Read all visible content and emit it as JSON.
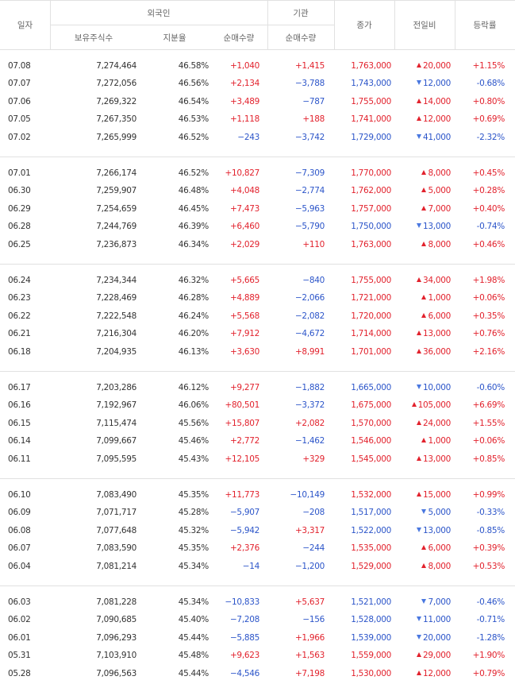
{
  "header": {
    "date": "일자",
    "foreign": "외국인",
    "institution": "기관",
    "foreign_holdings": "보유주식수",
    "foreign_ratio": "지분율",
    "foreign_net": "순매수량",
    "institution_net": "순매수량",
    "close": "종가",
    "change": "전일비",
    "rate": "등락률"
  },
  "groups": [
    [
      [
        "07.08",
        "7,274,464",
        "46.58%",
        "+1,040",
        "+1,415",
        "1,763,000",
        "20,000",
        "+1.15%"
      ],
      [
        "07.07",
        "7,272,056",
        "46.56%",
        "+2,134",
        "−3,788",
        "1,743,000",
        "12,000",
        "-0.68%"
      ],
      [
        "07.06",
        "7,269,322",
        "46.54%",
        "+3,489",
        "−787",
        "1,755,000",
        "14,000",
        "+0.80%"
      ],
      [
        "07.05",
        "7,267,350",
        "46.53%",
        "+1,118",
        "+188",
        "1,741,000",
        "12,000",
        "+0.69%"
      ],
      [
        "07.02",
        "7,265,999",
        "46.52%",
        "−243",
        "−3,742",
        "1,729,000",
        "41,000",
        "-2.32%"
      ]
    ],
    [
      [
        "07.01",
        "7,266,174",
        "46.52%",
        "+10,827",
        "−7,309",
        "1,770,000",
        "8,000",
        "+0.45%"
      ],
      [
        "06.30",
        "7,259,907",
        "46.48%",
        "+4,048",
        "−2,774",
        "1,762,000",
        "5,000",
        "+0.28%"
      ],
      [
        "06.29",
        "7,254,659",
        "46.45%",
        "+7,473",
        "−5,963",
        "1,757,000",
        "7,000",
        "+0.40%"
      ],
      [
        "06.28",
        "7,244,769",
        "46.39%",
        "+6,460",
        "−5,790",
        "1,750,000",
        "13,000",
        "-0.74%"
      ],
      [
        "06.25",
        "7,236,873",
        "46.34%",
        "+2,029",
        "+110",
        "1,763,000",
        "8,000",
        "+0.46%"
      ]
    ],
    [
      [
        "06.24",
        "7,234,344",
        "46.32%",
        "+5,665",
        "−840",
        "1,755,000",
        "34,000",
        "+1.98%"
      ],
      [
        "06.23",
        "7,228,469",
        "46.28%",
        "+4,889",
        "−2,066",
        "1,721,000",
        "1,000",
        "+0.06%"
      ],
      [
        "06.22",
        "7,222,548",
        "46.24%",
        "+5,568",
        "−2,082",
        "1,720,000",
        "6,000",
        "+0.35%"
      ],
      [
        "06.21",
        "7,216,304",
        "46.20%",
        "+7,912",
        "−4,672",
        "1,714,000",
        "13,000",
        "+0.76%"
      ],
      [
        "06.18",
        "7,204,935",
        "46.13%",
        "+3,630",
        "+8,991",
        "1,701,000",
        "36,000",
        "+2.16%"
      ]
    ],
    [
      [
        "06.17",
        "7,203,286",
        "46.12%",
        "+9,277",
        "−1,882",
        "1,665,000",
        "10,000",
        "-0.60%"
      ],
      [
        "06.16",
        "7,192,967",
        "46.06%",
        "+80,501",
        "−3,372",
        "1,675,000",
        "105,000",
        "+6.69%"
      ],
      [
        "06.15",
        "7,115,474",
        "45.56%",
        "+15,807",
        "+2,082",
        "1,570,000",
        "24,000",
        "+1.55%"
      ],
      [
        "06.14",
        "7,099,667",
        "45.46%",
        "+2,772",
        "−1,462",
        "1,546,000",
        "1,000",
        "+0.06%"
      ],
      [
        "06.11",
        "7,095,595",
        "45.43%",
        "+12,105",
        "+329",
        "1,545,000",
        "13,000",
        "+0.85%"
      ]
    ],
    [
      [
        "06.10",
        "7,083,490",
        "45.35%",
        "+11,773",
        "−10,149",
        "1,532,000",
        "15,000",
        "+0.99%"
      ],
      [
        "06.09",
        "7,071,717",
        "45.28%",
        "−5,907",
        "−208",
        "1,517,000",
        "5,000",
        "-0.33%"
      ],
      [
        "06.08",
        "7,077,648",
        "45.32%",
        "−5,942",
        "+3,317",
        "1,522,000",
        "13,000",
        "-0.85%"
      ],
      [
        "06.07",
        "7,083,590",
        "45.35%",
        "+2,376",
        "−244",
        "1,535,000",
        "6,000",
        "+0.39%"
      ],
      [
        "06.04",
        "7,081,214",
        "45.34%",
        "−14",
        "−1,200",
        "1,529,000",
        "8,000",
        "+0.53%"
      ]
    ],
    [
      [
        "06.03",
        "7,081,228",
        "45.34%",
        "−10,833",
        "+5,637",
        "1,521,000",
        "7,000",
        "-0.46%"
      ],
      [
        "06.02",
        "7,090,685",
        "45.40%",
        "−7,208",
        "−156",
        "1,528,000",
        "11,000",
        "-0.71%"
      ],
      [
        "06.01",
        "7,096,293",
        "45.44%",
        "−5,885",
        "+1,966",
        "1,539,000",
        "20,000",
        "-1.28%"
      ],
      [
        "05.31",
        "7,103,910",
        "45.48%",
        "+9,623",
        "+1,563",
        "1,559,000",
        "29,000",
        "+1.90%"
      ],
      [
        "05.28",
        "7,096,563",
        "45.44%",
        "−4,546",
        "+7,198",
        "1,530,000",
        "12,000",
        "+0.79%"
      ]
    ]
  ]
}
